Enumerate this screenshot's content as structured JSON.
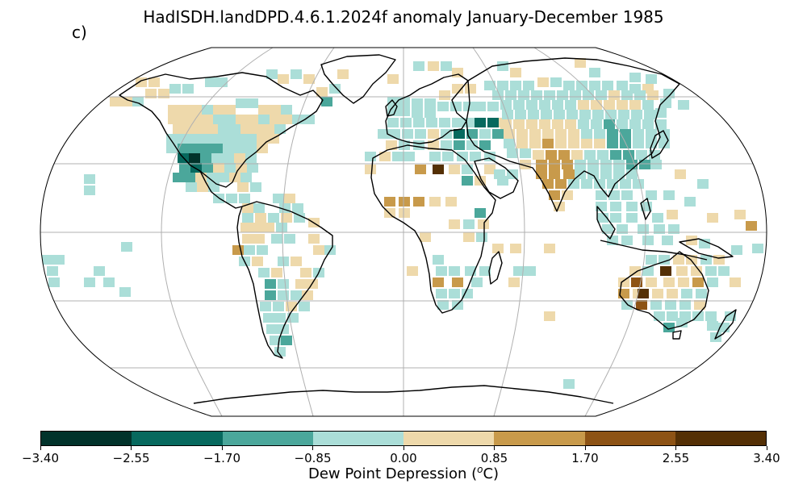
{
  "title": "HadISDH.landDPD.4.6.1.2024f anomaly January-December 1985",
  "panel_label": "c)",
  "colorbar": {
    "label_text": "Dew Point Depression (",
    "label_sup": "o",
    "label_unit": "C)",
    "tick_labels": [
      "−3.40",
      "−2.55",
      "−1.70",
      "−0.85",
      "0.00",
      "0.85",
      "1.70",
      "2.55",
      "3.40"
    ],
    "colors": [
      "#01332b",
      "#07695e",
      "#4ba79b",
      "#abded8",
      "#eed9ab",
      "#c89a4b",
      "#8d5315",
      "#543005"
    ]
  },
  "map": {
    "projection": "Robinson",
    "graticule_color": "#b0b0b0",
    "coastline_color": "#000000"
  }
}
